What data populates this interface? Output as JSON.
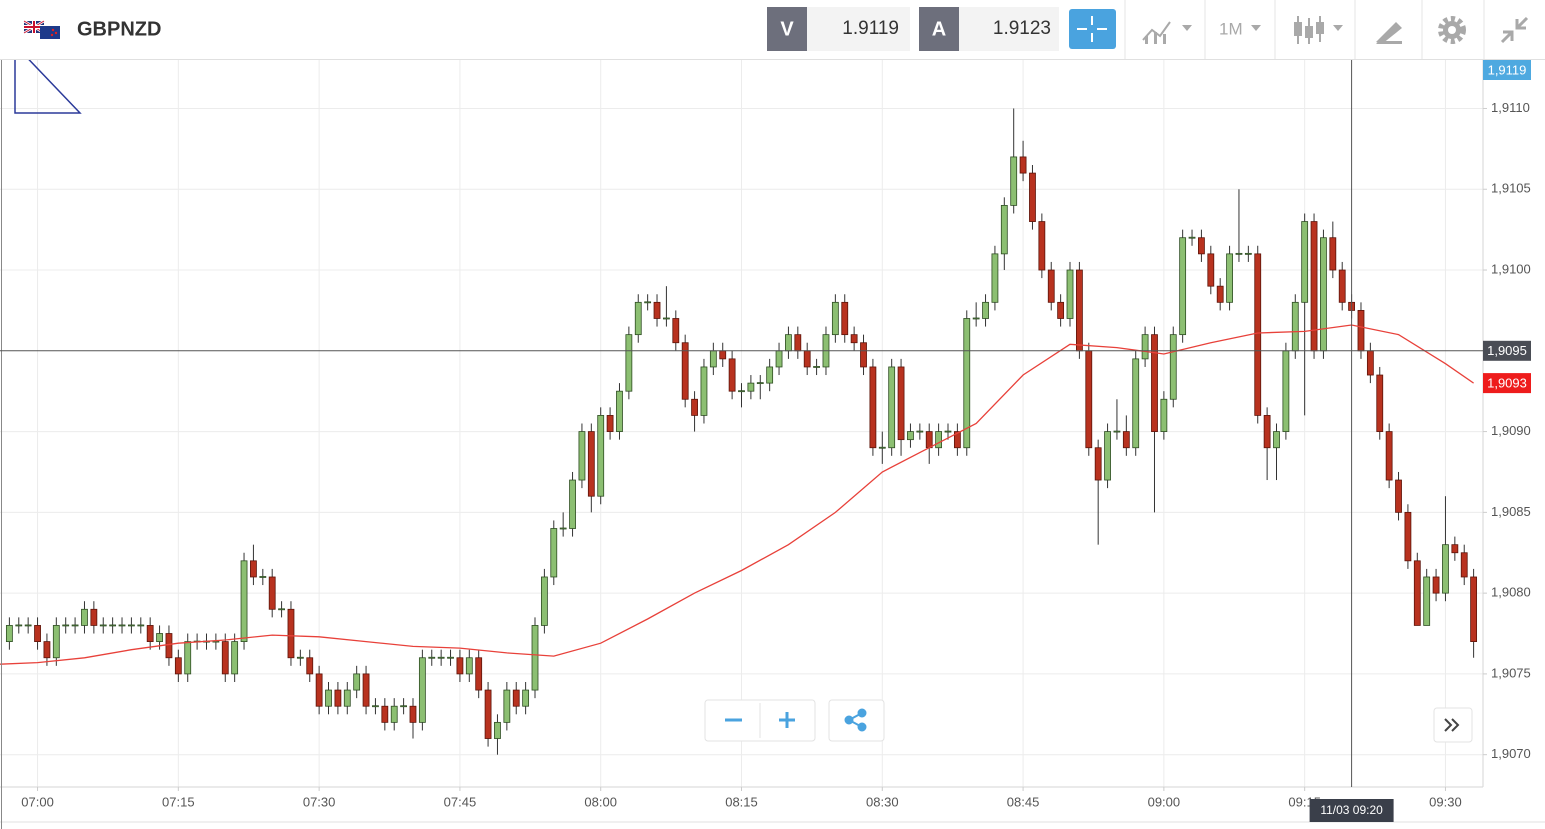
{
  "header": {
    "symbol": "GBPNZD",
    "bid_label": "V",
    "bid": 1.9119,
    "ask_label": "A",
    "ask": 1.9123,
    "timeframe": "1M"
  },
  "chart_data": {
    "type": "candlestick",
    "up_color": "#8cbf72",
    "down_color": "#b8321f",
    "up_border": "#2e4d22",
    "down_border": "#5c140a",
    "grid": true,
    "xlim": [
      "06:56",
      "09:34"
    ],
    "ylim": [
      1.9068,
      1.9113
    ],
    "xticks": [
      "07:00",
      "07:15",
      "07:30",
      "07:45",
      "08:00",
      "08:15",
      "08:30",
      "08:45",
      "09:00",
      "09:15",
      "09:30"
    ],
    "yticks": [
      {
        "value": 1.907,
        "label": "1,9070"
      },
      {
        "value": 1.9075,
        "label": "1,9075"
      },
      {
        "value": 1.908,
        "label": "1,9080"
      },
      {
        "value": 1.9085,
        "label": "1,9085"
      },
      {
        "value": 1.909,
        "label": "1,9090"
      },
      {
        "value": 1.91,
        "label": "1,9100"
      },
      {
        "value": 1.9105,
        "label": "1,9105"
      },
      {
        "value": 1.911,
        "label": "1,9110"
      }
    ],
    "x": [
      "06:57",
      "06:58",
      "06:59",
      "07:00",
      "07:01",
      "07:02",
      "07:03",
      "07:04",
      "07:05",
      "07:06",
      "07:07",
      "07:08",
      "07:09",
      "07:10",
      "07:11",
      "07:12",
      "07:13",
      "07:14",
      "07:15",
      "07:16",
      "07:17",
      "07:18",
      "07:19",
      "07:20",
      "07:21",
      "07:22",
      "07:23",
      "07:24",
      "07:25",
      "07:26",
      "07:27",
      "07:28",
      "07:29",
      "07:30",
      "07:31",
      "07:32",
      "07:33",
      "07:34",
      "07:35",
      "07:36",
      "07:37",
      "07:38",
      "07:39",
      "07:40",
      "07:41",
      "07:42",
      "07:43",
      "07:44",
      "07:45",
      "07:46",
      "07:47",
      "07:48",
      "07:49",
      "07:50",
      "07:51",
      "07:52",
      "07:53",
      "07:54",
      "07:55",
      "07:56",
      "07:57",
      "07:58",
      "07:59",
      "08:00",
      "08:01",
      "08:02",
      "08:03",
      "08:04",
      "08:05",
      "08:06",
      "08:07",
      "08:08",
      "08:09",
      "08:10",
      "08:11",
      "08:12",
      "08:13",
      "08:14",
      "08:15",
      "08:16",
      "08:17",
      "08:18",
      "08:19",
      "08:20",
      "08:21",
      "08:22",
      "08:23",
      "08:24",
      "08:25",
      "08:26",
      "08:27",
      "08:28",
      "08:29",
      "08:30",
      "08:31",
      "08:32",
      "08:33",
      "08:34",
      "08:35",
      "08:36",
      "08:37",
      "08:38",
      "08:39",
      "08:40",
      "08:41",
      "08:42",
      "08:43",
      "08:44",
      "08:45",
      "08:46",
      "08:47",
      "08:48",
      "08:49",
      "08:50",
      "08:51",
      "08:52",
      "08:53",
      "08:54",
      "08:55",
      "08:56",
      "08:57",
      "08:58",
      "08:59",
      "09:00",
      "09:01",
      "09:02",
      "09:03",
      "09:04",
      "09:05",
      "09:06",
      "09:07",
      "09:08",
      "09:09",
      "09:10",
      "09:11",
      "09:12",
      "09:13",
      "09:14",
      "09:15",
      "09:16",
      "09:17",
      "09:18",
      "09:19",
      "09:20",
      "09:21",
      "09:22",
      "09:23",
      "09:24",
      "09:25",
      "09:26",
      "09:27",
      "09:28",
      "09:29",
      "09:30",
      "09:31",
      "09:32",
      "09:33"
    ],
    "open": [
      1.9077,
      1.9078,
      1.9078,
      1.9078,
      1.9077,
      1.9076,
      1.9078,
      1.9078,
      1.9078,
      1.9079,
      1.9078,
      1.9078,
      1.9078,
      1.9078,
      1.9078,
      1.9078,
      1.9077,
      1.90775,
      1.9076,
      1.9075,
      1.9077,
      1.9077,
      1.9077,
      1.9077,
      1.9075,
      1.9077,
      1.9082,
      1.9081,
      1.9081,
      1.9079,
      1.9079,
      1.9076,
      1.9076,
      1.9075,
      1.9073,
      1.9074,
      1.9073,
      1.9074,
      1.9075,
      1.9073,
      1.9073,
      1.9072,
      1.9073,
      1.9073,
      1.9072,
      1.9076,
      1.9076,
      1.9076,
      1.9076,
      1.9075,
      1.9076,
      1.9074,
      1.9071,
      1.9072,
      1.9074,
      1.9073,
      1.9074,
      1.9078,
      1.9081,
      1.9084,
      1.9084,
      1.9087,
      1.909,
      1.9086,
      1.9091,
      1.909,
      1.90925,
      1.9096,
      1.9098,
      1.9098,
      1.9097,
      1.9097,
      1.90955,
      1.9092,
      1.9091,
      1.9094,
      1.9095,
      1.90945,
      1.90925,
      1.90925,
      1.9093,
      1.9093,
      1.9094,
      1.9095,
      1.9096,
      1.9095,
      1.9094,
      1.9094,
      1.9096,
      1.9098,
      1.9096,
      1.90955,
      1.9094,
      1.9089,
      1.9089,
      1.9094,
      1.90895,
      1.909,
      1.909,
      1.9089,
      1.909,
      1.909,
      1.9089,
      1.9097,
      1.9097,
      1.9098,
      1.9101,
      1.9104,
      1.9107,
      1.9106,
      1.9103,
      1.91,
      1.9098,
      1.9097,
      1.91,
      1.9095,
      1.9089,
      1.9087,
      1.909,
      1.909,
      1.9089,
      1.90945,
      1.9096,
      1.909,
      1.9092,
      1.9096,
      1.9102,
      1.9102,
      1.9101,
      1.9099,
      1.9098,
      1.9101,
      1.9101,
      1.9101,
      1.9091,
      1.9089,
      1.909,
      1.9095,
      1.9098,
      1.9103,
      1.9095,
      1.9102,
      1.91,
      1.9098,
      1.90975,
      1.9095,
      1.90935,
      1.909,
      1.9087,
      1.9085,
      1.9082,
      1.9078,
      1.9081,
      1.908,
      1.9083,
      1.90825,
      1.9081
    ],
    "high": [
      1.90785,
      1.90785,
      1.90785,
      1.90785,
      1.90775,
      1.90785,
      1.90785,
      1.90785,
      1.90795,
      1.90795,
      1.90785,
      1.90785,
      1.90785,
      1.90785,
      1.90785,
      1.90785,
      1.9078,
      1.9078,
      1.90765,
      1.90775,
      1.90775,
      1.90775,
      1.90775,
      1.90775,
      1.90775,
      1.90825,
      1.9083,
      1.90815,
      1.90815,
      1.90795,
      1.90795,
      1.90765,
      1.90765,
      1.90755,
      1.90745,
      1.90745,
      1.90745,
      1.90755,
      1.90755,
      1.90735,
      1.90735,
      1.90735,
      1.90735,
      1.90735,
      1.90765,
      1.90765,
      1.90765,
      1.90765,
      1.90765,
      1.90765,
      1.90765,
      1.90745,
      1.90725,
      1.90745,
      1.90745,
      1.90745,
      1.90785,
      1.90815,
      1.90845,
      1.9085,
      1.90875,
      1.90905,
      1.90905,
      1.90915,
      1.90915,
      1.9093,
      1.90965,
      1.90985,
      1.90985,
      1.90985,
      1.9099,
      1.90975,
      1.9096,
      1.90925,
      1.90945,
      1.90955,
      1.90955,
      1.9095,
      1.9093,
      1.90935,
      1.90935,
      1.90945,
      1.90955,
      1.90965,
      1.90965,
      1.90955,
      1.90945,
      1.90965,
      1.90985,
      1.90985,
      1.90965,
      1.9096,
      1.90945,
      1.909,
      1.90945,
      1.90945,
      1.90905,
      1.90905,
      1.90905,
      1.90905,
      1.90905,
      1.90905,
      1.90975,
      1.9098,
      1.90985,
      1.91015,
      1.91045,
      1.911,
      1.9108,
      1.91065,
      1.91035,
      1.91005,
      1.90985,
      1.91005,
      1.91005,
      1.90955,
      1.90895,
      1.90905,
      1.9092,
      1.9091,
      1.9095,
      1.90965,
      1.90965,
      1.90925,
      1.90965,
      1.91025,
      1.91025,
      1.91025,
      1.91015,
      1.90995,
      1.91015,
      1.9105,
      1.91015,
      1.91015,
      1.90915,
      1.90905,
      1.90955,
      1.90985,
      1.91035,
      1.91035,
      1.91025,
      1.9103,
      1.91005,
      1.90985,
      1.9098,
      1.90955,
      1.9094,
      1.90905,
      1.90875,
      1.90855,
      1.90825,
      1.90815,
      1.90815,
      1.9086,
      1.90835,
      1.9083,
      1.90815
    ],
    "low": [
      1.90765,
      1.90775,
      1.90775,
      1.90765,
      1.90755,
      1.90755,
      1.90775,
      1.90775,
      1.90775,
      1.90775,
      1.90775,
      1.90775,
      1.90775,
      1.90775,
      1.90775,
      1.90765,
      1.90765,
      1.90755,
      1.90745,
      1.90745,
      1.90765,
      1.90765,
      1.90765,
      1.90745,
      1.90745,
      1.90765,
      1.90805,
      1.90805,
      1.90785,
      1.90785,
      1.90755,
      1.90755,
      1.90745,
      1.90725,
      1.90725,
      1.90725,
      1.90725,
      1.90735,
      1.90725,
      1.90725,
      1.90715,
      1.90715,
      1.90725,
      1.9071,
      1.90715,
      1.90755,
      1.90755,
      1.90755,
      1.90745,
      1.90745,
      1.90735,
      1.90705,
      1.907,
      1.90715,
      1.90725,
      1.90725,
      1.90735,
      1.90775,
      1.90805,
      1.90835,
      1.90835,
      1.90865,
      1.9085,
      1.90855,
      1.90895,
      1.90895,
      1.9092,
      1.90955,
      1.90975,
      1.90965,
      1.90965,
      1.9095,
      1.90915,
      1.909,
      1.90905,
      1.90935,
      1.9094,
      1.9092,
      1.90915,
      1.9092,
      1.9092,
      1.90925,
      1.90935,
      1.90945,
      1.90945,
      1.90935,
      1.90935,
      1.90935,
      1.90955,
      1.90955,
      1.9095,
      1.90935,
      1.90885,
      1.9088,
      1.90885,
      1.90885,
      1.9089,
      1.90895,
      1.9088,
      1.90885,
      1.90895,
      1.90885,
      1.90885,
      1.90965,
      1.90965,
      1.90975,
      1.91,
      1.91035,
      1.91055,
      1.91025,
      1.90995,
      1.90975,
      1.90965,
      1.90965,
      1.90945,
      1.90885,
      1.9083,
      1.90865,
      1.90895,
      1.90885,
      1.90885,
      1.9094,
      1.9085,
      1.90895,
      1.90915,
      1.90955,
      1.91015,
      1.91005,
      1.90985,
      1.90975,
      1.90975,
      1.91005,
      1.91005,
      1.90905,
      1.9087,
      1.9087,
      1.90895,
      1.90945,
      1.9091,
      1.90945,
      1.90945,
      1.90995,
      1.90975,
      1.9097,
      1.90945,
      1.9093,
      1.90895,
      1.90865,
      1.90845,
      1.90815,
      1.9078,
      1.9078,
      1.90795,
      1.90795,
      1.9082,
      1.90805,
      1.9076
    ],
    "close": [
      1.9078,
      1.9078,
      1.9078,
      1.9077,
      1.9076,
      1.9078,
      1.9078,
      1.9078,
      1.9079,
      1.9078,
      1.9078,
      1.9078,
      1.9078,
      1.9078,
      1.9078,
      1.9077,
      1.90775,
      1.9076,
      1.9075,
      1.9077,
      1.9077,
      1.9077,
      1.9077,
      1.9075,
      1.9077,
      1.9082,
      1.9081,
      1.9081,
      1.9079,
      1.9079,
      1.9076,
      1.9076,
      1.9075,
      1.9073,
      1.9074,
      1.9073,
      1.9074,
      1.9075,
      1.9073,
      1.9073,
      1.9072,
      1.9073,
      1.9073,
      1.9072,
      1.9076,
      1.9076,
      1.9076,
      1.9076,
      1.9075,
      1.9076,
      1.9074,
      1.9071,
      1.9072,
      1.9074,
      1.9073,
      1.9074,
      1.9078,
      1.9081,
      1.9084,
      1.9084,
      1.9087,
      1.909,
      1.9086,
      1.9091,
      1.909,
      1.90925,
      1.9096,
      1.9098,
      1.9098,
      1.9097,
      1.9097,
      1.90955,
      1.9092,
      1.9091,
      1.9094,
      1.9095,
      1.90945,
      1.90925,
      1.90925,
      1.9093,
      1.9093,
      1.9094,
      1.9095,
      1.9096,
      1.9095,
      1.9094,
      1.9094,
      1.9096,
      1.9098,
      1.9096,
      1.90955,
      1.9094,
      1.9089,
      1.9089,
      1.9094,
      1.90895,
      1.909,
      1.909,
      1.9089,
      1.909,
      1.909,
      1.9089,
      1.9097,
      1.9097,
      1.9098,
      1.9101,
      1.9104,
      1.9107,
      1.9106,
      1.9103,
      1.91,
      1.9098,
      1.9097,
      1.91,
      1.9095,
      1.9089,
      1.9087,
      1.909,
      1.909,
      1.9089,
      1.90945,
      1.9096,
      1.909,
      1.9092,
      1.9096,
      1.9102,
      1.9102,
      1.9101,
      1.9099,
      1.9098,
      1.9101,
      1.9101,
      1.9101,
      1.9091,
      1.9089,
      1.909,
      1.9095,
      1.9098,
      1.9103,
      1.9095,
      1.9102,
      1.91,
      1.9098,
      1.90975,
      1.9095,
      1.90935,
      1.909,
      1.9087,
      1.9085,
      1.9082,
      1.9078,
      1.9081,
      1.908,
      1.9083,
      1.90825,
      1.9081,
      1.9077
    ],
    "moving_average": {
      "color": "#e8413a",
      "x": [
        "06:56",
        "07:00",
        "07:05",
        "07:10",
        "07:15",
        "07:20",
        "07:25",
        "07:30",
        "07:35",
        "07:40",
        "07:45",
        "07:50",
        "07:55",
        "08:00",
        "08:05",
        "08:10",
        "08:15",
        "08:20",
        "08:25",
        "08:30",
        "08:35",
        "08:40",
        "08:45",
        "08:50",
        "08:55",
        "09:00",
        "09:05",
        "09:10",
        "09:15",
        "09:20",
        "09:25",
        "09:30",
        "09:33"
      ],
      "values": [
        1.90756,
        1.90757,
        1.9076,
        1.90765,
        1.90769,
        1.90771,
        1.90774,
        1.90773,
        1.9077,
        1.90767,
        1.90766,
        1.90763,
        1.90761,
        1.90769,
        1.90784,
        1.908,
        1.90814,
        1.9083,
        1.9085,
        1.90875,
        1.9089,
        1.90905,
        1.90935,
        1.90954,
        1.90952,
        1.90948,
        1.90955,
        1.90961,
        1.90962,
        1.90966,
        1.9096,
        1.90942,
        1.9093
      ]
    },
    "price_markers": [
      {
        "value": 1.9119,
        "label": "1,9119",
        "color": "#4ea9e0"
      },
      {
        "value": 1.9095,
        "label": "1,9095",
        "color": "#4a4d55"
      },
      {
        "value": 1.9093,
        "label": "1,9093",
        "color": "#ee1c1c"
      }
    ],
    "crosshair": {
      "x": "09:20",
      "y": 1.9095,
      "label": "11/03 09:20"
    }
  }
}
